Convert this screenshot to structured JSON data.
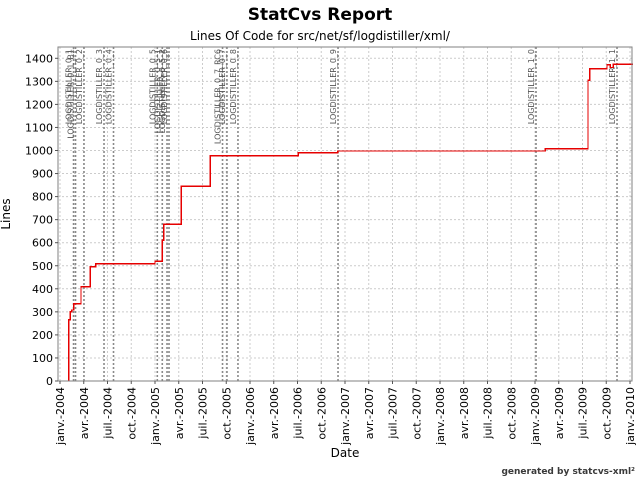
{
  "header": {
    "title": "StatCvs Report",
    "subtitle": "Lines Of Code for src/net/sf/logdistiller/xml/"
  },
  "footer": {
    "credit": "generated by statcvs-xml²"
  },
  "chart_data": {
    "type": "line",
    "subtype": "step",
    "title": "StatCvs Report",
    "subtitle": "Lines Of Code for src/net/sf/logdistiller/xml/",
    "xlabel": "Date",
    "ylabel": "Lines",
    "ylim": [
      0,
      1450
    ],
    "xlim_months_since_jan_2004": [
      -0.3,
      72.5
    ],
    "grid": "dashed",
    "legend": "none",
    "y_ticks": [
      0,
      100,
      200,
      300,
      400,
      500,
      600,
      700,
      800,
      900,
      1000,
      1100,
      1200,
      1300,
      1400
    ],
    "x_ticks": [
      {
        "label": "janv.-2004",
        "month": 0
      },
      {
        "label": "avr.-2004",
        "month": 3
      },
      {
        "label": "juil.-2004",
        "month": 6
      },
      {
        "label": "oct.-2004",
        "month": 9
      },
      {
        "label": "janv.-2005",
        "month": 12
      },
      {
        "label": "avr.-2005",
        "month": 15
      },
      {
        "label": "juil.-2005",
        "month": 18
      },
      {
        "label": "oct.-2005",
        "month": 21
      },
      {
        "label": "janv.-2006",
        "month": 24
      },
      {
        "label": "avr.-2006",
        "month": 27
      },
      {
        "label": "juil.-2006",
        "month": 30
      },
      {
        "label": "oct.-2006",
        "month": 33
      },
      {
        "label": "janv.-2007",
        "month": 36
      },
      {
        "label": "avr.-2007",
        "month": 39
      },
      {
        "label": "juil.-2007",
        "month": 42
      },
      {
        "label": "oct.-2007",
        "month": 45
      },
      {
        "label": "janv.-2008",
        "month": 48
      },
      {
        "label": "avr.-2008",
        "month": 51
      },
      {
        "label": "juil.-2008",
        "month": 54
      },
      {
        "label": "oct.-2008",
        "month": 57
      },
      {
        "label": "janv.-2009",
        "month": 60
      },
      {
        "label": "avr.-2009",
        "month": 63
      },
      {
        "label": "juil.-2009",
        "month": 66
      },
      {
        "label": "oct.-2009",
        "month": 69
      },
      {
        "label": "janv.-2010",
        "month": 72
      }
    ],
    "tags": [
      {
        "label": "LOGDISTILLER_0_1",
        "month": 1.71
      },
      {
        "label": "LOGDISTILLER_0_1_B1",
        "month": 1.96
      },
      {
        "label": "LOGDISTILLER_0_2",
        "month": 3.03
      },
      {
        "label": "LOGDISTILLER_0_3",
        "month": 5.56
      },
      {
        "label": "LOGDISTILLER_0_4",
        "month": 6.76
      },
      {
        "label": "LOGDISTILLER_0_5",
        "month": 12.29
      },
      {
        "label": "LOGDISTILLER_0_5_1",
        "month": 12.92
      },
      {
        "label": "LOGDISTILLER_0_5_2",
        "month": 13.52
      },
      {
        "label": "LOGDISTILLER_0_6",
        "month": 13.77
      },
      {
        "label": "LOGDISTILLER_0_7_RC6",
        "month": 20.53
      },
      {
        "label": "LOGDISTILLER_0_7",
        "month": 21.09
      },
      {
        "label": "LOGDISTILLER_0_8",
        "month": 22.48
      },
      {
        "label": "LOGDISTILLER_0_9",
        "month": 35.12
      },
      {
        "label": "LOGDISTILLER_1_0",
        "month": 60.13
      },
      {
        "label": "LOGDISTILLER_1_1",
        "month": 70.36
      }
    ],
    "series": [
      {
        "name": "Lines of Code",
        "color": "#e60000",
        "points_month_value": [
          [
            1.1,
            0
          ],
          [
            1.1,
            265
          ],
          [
            1.3,
            265
          ],
          [
            1.3,
            300
          ],
          [
            1.5,
            300
          ],
          [
            1.5,
            308
          ],
          [
            1.75,
            308
          ],
          [
            1.75,
            335
          ],
          [
            2.65,
            335
          ],
          [
            2.65,
            409
          ],
          [
            3.8,
            409
          ],
          [
            3.8,
            495
          ],
          [
            4.5,
            495
          ],
          [
            4.5,
            508
          ],
          [
            12.0,
            508
          ],
          [
            12.0,
            520
          ],
          [
            12.9,
            520
          ],
          [
            12.9,
            610
          ],
          [
            13.1,
            610
          ],
          [
            13.1,
            680
          ],
          [
            15.3,
            680
          ],
          [
            15.3,
            845
          ],
          [
            19.0,
            845
          ],
          [
            19.0,
            978
          ],
          [
            30.1,
            978
          ],
          [
            30.1,
            990
          ],
          [
            35.1,
            990
          ],
          [
            35.1,
            998
          ],
          [
            61.3,
            998
          ],
          [
            61.3,
            1008
          ],
          [
            66.7,
            1008
          ],
          [
            66.7,
            1305
          ],
          [
            66.9,
            1305
          ],
          [
            66.9,
            1355
          ],
          [
            69.1,
            1355
          ],
          [
            69.1,
            1372
          ],
          [
            69.5,
            1372
          ],
          [
            69.5,
            1360
          ],
          [
            69.9,
            1360
          ],
          [
            69.9,
            1375
          ],
          [
            72.4,
            1375
          ]
        ]
      }
    ],
    "colors": {
      "series": "#e60000",
      "grid": "#cccccc",
      "tag_line": "#8a8a8a",
      "tag_label": "#555555",
      "axis": "#555555",
      "plot_border": "#808080",
      "tick_text": "#000000"
    }
  }
}
